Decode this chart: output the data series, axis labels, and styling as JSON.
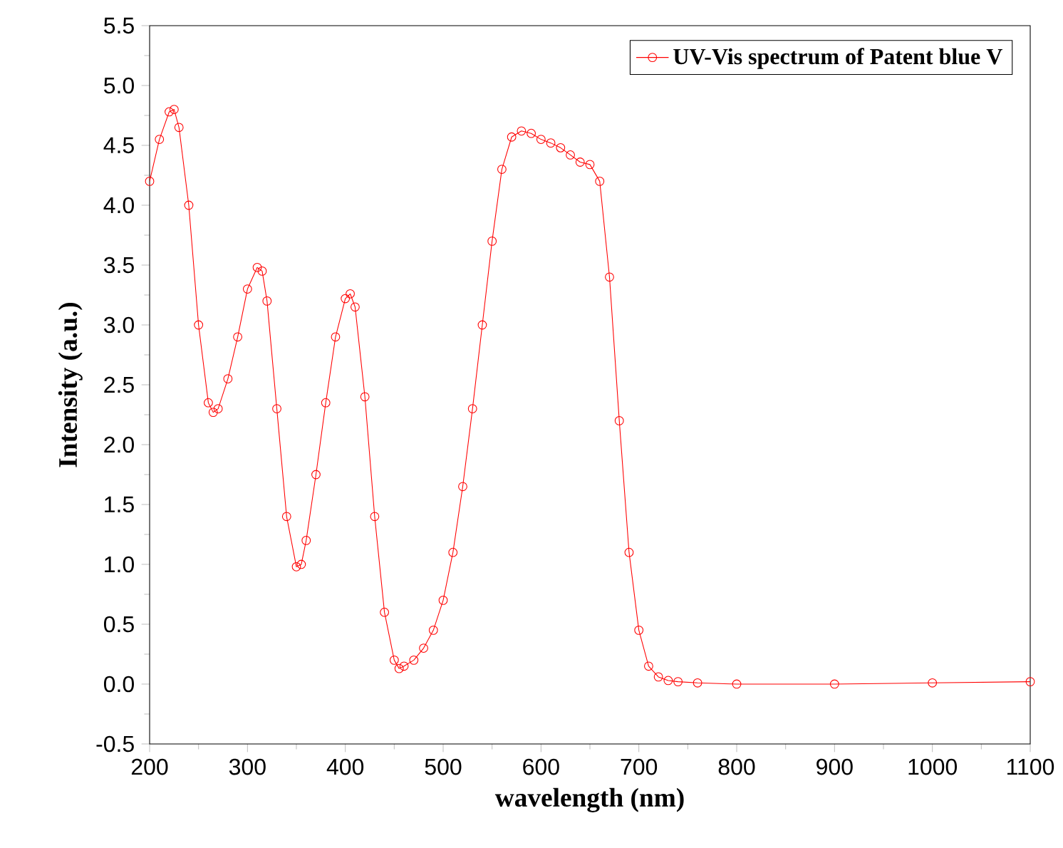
{
  "chart_data": {
    "type": "line",
    "xlabel": "wavelength (nm)",
    "ylabel": "Intensity (a.u.)",
    "xlim": [
      200,
      1100
    ],
    "ylim": [
      -0.5,
      5.5
    ],
    "xticks": [
      200,
      300,
      400,
      500,
      600,
      700,
      800,
      900,
      1000,
      1100
    ],
    "yticks": [
      -0.5,
      {
        "value": 0,
        "label": "0.0"
      },
      0.5,
      {
        "value": 1,
        "label": "1.0"
      },
      1.5,
      {
        "value": 2,
        "label": "2.0"
      },
      2.5,
      {
        "value": 3,
        "label": "3.0"
      },
      3.5,
      {
        "value": 4,
        "label": "4.0"
      },
      4.5,
      {
        "value": 5,
        "label": "5.0"
      },
      5.5
    ],
    "legend": "top right",
    "marker": "circle",
    "line_style": "solid",
    "grid": false,
    "series": [
      {
        "name": "UV-Vis spectrum of Patent blue V",
        "color": "#ff0000",
        "x": [
          200,
          210,
          220,
          225,
          230,
          240,
          250,
          260,
          265,
          270,
          280,
          290,
          300,
          310,
          315,
          320,
          330,
          340,
          350,
          355,
          360,
          370,
          380,
          390,
          400,
          405,
          410,
          420,
          430,
          440,
          450,
          455,
          460,
          470,
          480,
          490,
          500,
          510,
          520,
          530,
          540,
          550,
          560,
          570,
          580,
          590,
          600,
          610,
          620,
          630,
          640,
          650,
          660,
          670,
          680,
          690,
          700,
          710,
          720,
          730,
          740,
          760,
          800,
          900,
          1000,
          1100
        ],
        "values": [
          4.2,
          4.55,
          4.78,
          4.8,
          4.65,
          4.0,
          3.0,
          2.35,
          2.27,
          2.3,
          2.55,
          2.9,
          3.3,
          3.48,
          3.45,
          3.2,
          2.3,
          1.4,
          0.98,
          1.0,
          1.2,
          1.75,
          2.35,
          2.9,
          3.22,
          3.26,
          3.15,
          2.4,
          1.4,
          0.6,
          0.2,
          0.13,
          0.15,
          0.2,
          0.3,
          0.45,
          0.7,
          1.1,
          1.65,
          2.3,
          3.0,
          3.7,
          4.3,
          4.57,
          4.62,
          4.6,
          4.55,
          4.52,
          4.48,
          4.42,
          4.36,
          4.34,
          4.2,
          3.4,
          2.2,
          1.1,
          0.45,
          0.15,
          0.06,
          0.03,
          0.02,
          0.01,
          0.0,
          0.0,
          0.01,
          0.02
        ]
      }
    ]
  }
}
